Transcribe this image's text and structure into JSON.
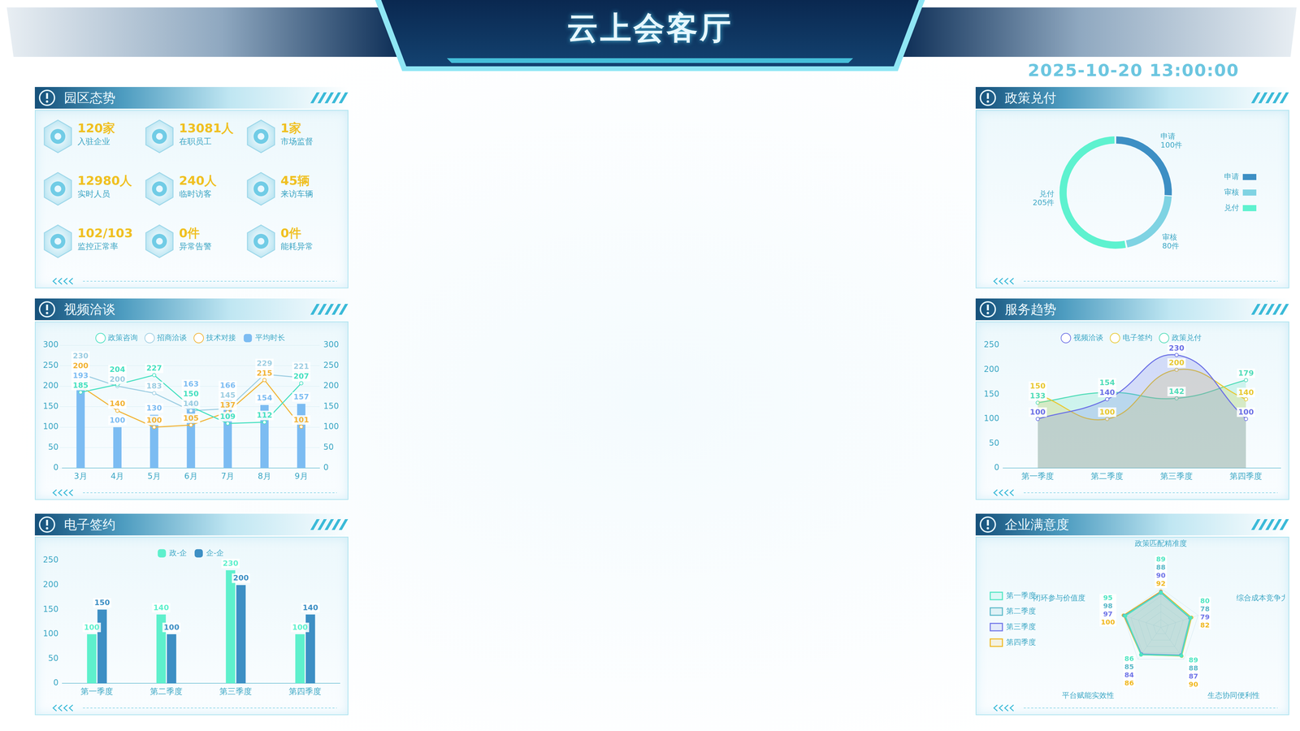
{
  "header": {
    "title": "云上会客厅",
    "datetime": "2025-10-20 13:00:00"
  },
  "park": {
    "title": "园区态势",
    "items": [
      {
        "value": "120家",
        "label": "入驻企业"
      },
      {
        "value": "13081人",
        "label": "在职员工"
      },
      {
        "value": "1家",
        "label": "市场监督"
      },
      {
        "value": "12980人",
        "label": "实时人员"
      },
      {
        "value": "240人",
        "label": "临时访客"
      },
      {
        "value": "45辆",
        "label": "来访车辆"
      },
      {
        "value": "102/103",
        "label": "监控正常率"
      },
      {
        "value": "0件",
        "label": "异常告警"
      },
      {
        "value": "0件",
        "label": "能耗异常"
      }
    ]
  },
  "chart_data": [
    {
      "title": "视频洽谈",
      "type": "bar",
      "categories": [
        "3月",
        "4月",
        "5月",
        "6月",
        "7月",
        "8月",
        "9月"
      ],
      "series": [
        {
          "name": "平均时长",
          "type": "bar",
          "color": "#7cbcf2",
          "values": [
            193,
            100,
            130,
            163,
            166,
            154,
            157
          ]
        },
        {
          "name": "政策咨询",
          "type": "line",
          "axis": "y2",
          "marker": "circle",
          "color": "#45e0c0",
          "values": [
            185,
            204,
            227,
            150,
            109,
            112,
            207
          ]
        },
        {
          "name": "招商洽谈",
          "type": "line",
          "axis": "y2",
          "marker": "circle",
          "color": "#9ccde2",
          "values": [
            230,
            200,
            183,
            140,
            145,
            229,
            221
          ]
        },
        {
          "name": "技术对接",
          "type": "line",
          "axis": "y2",
          "marker": "circle",
          "color": "#f2b233",
          "values": [
            200,
            140,
            100,
            105,
            137,
            215,
            101
          ]
        }
      ],
      "ylim": [
        0,
        300
      ],
      "yticks": [
        0,
        50,
        100,
        150,
        200,
        250,
        300
      ],
      "y2lim": [
        0,
        300
      ],
      "y2ticks": [
        0,
        50,
        100,
        150,
        200,
        250,
        300
      ],
      "grid": true,
      "legend": "top",
      "data_labels": true
    },
    {
      "title": "电子签约",
      "type": "bar",
      "categories": [
        "第一季度",
        "第二季度",
        "第三季度",
        "第四季度"
      ],
      "series": [
        {
          "name": "政-企",
          "color": "#5ef0cc",
          "values": [
            100,
            140,
            230,
            100
          ]
        },
        {
          "name": "企-企",
          "color": "#3d8fc4",
          "values": [
            150,
            100,
            200,
            140
          ]
        }
      ],
      "ylim": [
        0,
        250
      ],
      "yticks": [
        0,
        50,
        100,
        150,
        200,
        250
      ],
      "grid": false,
      "legend": "top",
      "data_labels": true
    },
    {
      "title": "政策兑付",
      "type": "doughnut",
      "categories": [
        "申请",
        "审核",
        "兑付"
      ],
      "values": [
        100,
        80,
        205
      ],
      "value_labels": [
        "100件",
        "80件",
        "205件"
      ],
      "colors": [
        "#3d8fc4",
        "#7fd3e3",
        "#5ef2cf"
      ],
      "legend": "right",
      "data_labels": true
    },
    {
      "title": "服务趋势",
      "type": "area",
      "categories": [
        "第一季度",
        "第二季度",
        "第三季度",
        "第四季度"
      ],
      "series": [
        {
          "name": "视频洽谈",
          "marker": "circle",
          "color": "#6b70e6",
          "values": [
            100,
            140,
            230,
            100
          ]
        },
        {
          "name": "电子签约",
          "marker": "circle",
          "color": "#e8c830",
          "values": [
            150,
            100,
            200,
            140
          ]
        },
        {
          "name": "政策兑付",
          "marker": "circle",
          "color": "#4fdcb8",
          "values": [
            133,
            154,
            142,
            179
          ]
        }
      ],
      "ylim": [
        0,
        250
      ],
      "yticks": [
        0,
        50,
        100,
        150,
        200,
        250
      ],
      "grid": false,
      "legend": "top",
      "data_labels": true
    },
    {
      "title": "企业满意度",
      "type": "radar",
      "categories": [
        "政策匹配精准度",
        "综合成本竞争力",
        "生态协同便利性",
        "平台赋能实效性",
        "闭环参与价值度"
      ],
      "series": [
        {
          "name": "第一季度",
          "marker": "circle",
          "color": "#4fe6c2",
          "values": [
            89,
            80,
            89,
            86,
            95
          ]
        },
        {
          "name": "第二季度",
          "marker": "circle",
          "color": "#5ab8c8",
          "values": [
            88,
            78,
            88,
            85,
            98
          ]
        },
        {
          "name": "第三季度",
          "marker": "circle",
          "color": "#6f74e8",
          "values": [
            90,
            79,
            87,
            84,
            97
          ]
        },
        {
          "name": "第四季度",
          "marker": "circle",
          "color": "#f0b820",
          "values": [
            92,
            82,
            90,
            86,
            100
          ]
        }
      ],
      "ylim": [
        0,
        100
      ],
      "yticks": [
        0,
        20,
        40,
        60,
        80,
        100
      ],
      "grid": true,
      "tick_labels": false,
      "legend": "left",
      "data_labels": true
    }
  ]
}
